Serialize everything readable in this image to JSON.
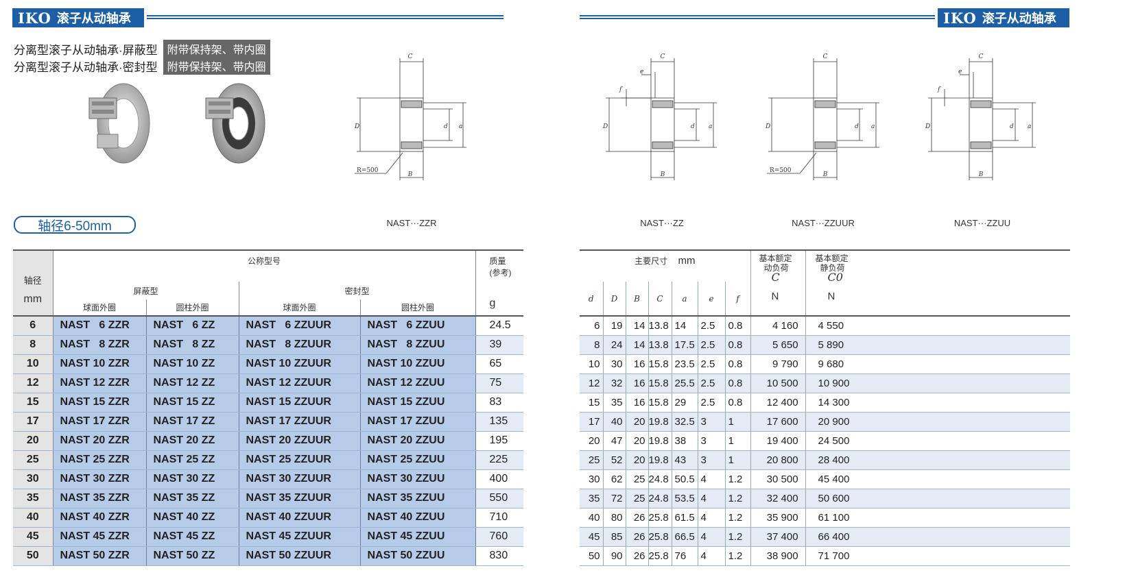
{
  "brand": "IKO",
  "header_title": "滚子从动轴承",
  "subtitles": [
    {
      "text": "分离型滚子从动轴承·屏蔽型",
      "tag": "附带保持架、带内圈"
    },
    {
      "text": "分离型滚子从动轴承·密封型",
      "tag": "附带保持架、带内圈"
    }
  ],
  "shaft_range": "轴径6-50mm",
  "diagram_labels": {
    "C": "C",
    "D": "D",
    "d": "d",
    "a": "a",
    "B": "B",
    "e": "e",
    "f": "f",
    "R": "R=500"
  },
  "captions": [
    "NAST···ZZR",
    "NAST···ZZ",
    "NAST···ZZUUR",
    "NAST···ZZUU"
  ],
  "left_table": {
    "h_shaft": "轴径",
    "h_shaft_unit": "mm",
    "h_nominal": "公称型号",
    "h_shield": "屏蔽型",
    "h_seal": "密封型",
    "h_sphere1": "球面外圈",
    "h_cyl1": "圆柱外圈",
    "h_sphere2": "球面外圈",
    "h_cyl2": "圆柱外圈",
    "h_mass": "质量",
    "h_mass_ref": "(参考)",
    "h_mass_unit": "g",
    "rows": [
      [
        "6",
        "NAST   6 ZZR",
        "NAST   6 ZZ",
        "NAST   6 ZZUUR",
        "NAST   6 ZZUU",
        "24.5"
      ],
      [
        "8",
        "NAST   8 ZZR",
        "NAST   8 ZZ",
        "NAST   8 ZZUUR",
        "NAST   8 ZZUU",
        "39"
      ],
      [
        "10",
        "NAST 10 ZZR",
        "NAST 10 ZZ",
        "NAST 10 ZZUUR",
        "NAST 10 ZZUU",
        "65"
      ],
      [
        "12",
        "NAST 12 ZZR",
        "NAST 12 ZZ",
        "NAST 12 ZZUUR",
        "NAST 12 ZZUU",
        "75"
      ],
      [
        "15",
        "NAST 15 ZZR",
        "NAST 15 ZZ",
        "NAST 15 ZZUUR",
        "NAST 15 ZZUU",
        "83"
      ],
      [
        "17",
        "NAST 17 ZZR",
        "NAST 17 ZZ",
        "NAST 17 ZZUUR",
        "NAST 17 ZZUU",
        "135"
      ],
      [
        "20",
        "NAST 20 ZZR",
        "NAST 20 ZZ",
        "NAST 20 ZZUUR",
        "NAST 20 ZZUU",
        "195"
      ],
      [
        "25",
        "NAST 25 ZZR",
        "NAST 25 ZZ",
        "NAST 25 ZZUUR",
        "NAST 25 ZZUU",
        "225"
      ],
      [
        "30",
        "NAST 30 ZZR",
        "NAST 30 ZZ",
        "NAST 30 ZZUUR",
        "NAST 30 ZZUU",
        "400"
      ],
      [
        "35",
        "NAST 35 ZZR",
        "NAST 35 ZZ",
        "NAST 35 ZZUUR",
        "NAST 35 ZZUU",
        "550"
      ],
      [
        "40",
        "NAST 40 ZZR",
        "NAST 40 ZZ",
        "NAST 40 ZZUUR",
        "NAST 40 ZZUU",
        "710"
      ],
      [
        "45",
        "NAST 45 ZZR",
        "NAST 45 ZZ",
        "NAST 45 ZZUUR",
        "NAST 45 ZZUU",
        "760"
      ],
      [
        "50",
        "NAST 50 ZZR",
        "NAST 50 ZZ",
        "NAST 50 ZZUUR",
        "NAST 50 ZZUU",
        "830"
      ]
    ]
  },
  "right_table": {
    "h_main": "主要尺寸",
    "h_main_unit": "mm",
    "h_dyn": [
      "基本额定",
      "动负荷"
    ],
    "h_dyn_sym": "C",
    "h_static": [
      "基本额定",
      "静负荷"
    ],
    "h_static_sym": "C0",
    "h_unit_n": "N",
    "cols": [
      "d",
      "D",
      "B",
      "C",
      "a",
      "e",
      "f"
    ],
    "rows": [
      [
        "6",
        "19",
        "14",
        "13.8",
        "14",
        "2.5",
        "0.8",
        "4 160",
        "4 550"
      ],
      [
        "8",
        "24",
        "14",
        "13.8",
        "17.5",
        "2.5",
        "0.8",
        "5 650",
        "5 890"
      ],
      [
        "10",
        "30",
        "16",
        "15.8",
        "23.5",
        "2.5",
        "0.8",
        "9 790",
        "9 680"
      ],
      [
        "12",
        "32",
        "16",
        "15.8",
        "25.5",
        "2.5",
        "0.8",
        "10 500",
        "10 900"
      ],
      [
        "15",
        "35",
        "16",
        "15.8",
        "29",
        "2.5",
        "0.8",
        "12 400",
        "14 300"
      ],
      [
        "17",
        "40",
        "20",
        "19.8",
        "32.5",
        "3",
        "1",
        "17 600",
        "20 900"
      ],
      [
        "20",
        "47",
        "20",
        "19.8",
        "38",
        "3",
        "1",
        "19 400",
        "24 500"
      ],
      [
        "25",
        "52",
        "20",
        "19.8",
        "43",
        "3",
        "1",
        "20 800",
        "28 400"
      ],
      [
        "30",
        "62",
        "25",
        "24.8",
        "50.5",
        "4",
        "1.2",
        "30 500",
        "45 400"
      ],
      [
        "35",
        "72",
        "25",
        "24.8",
        "53.5",
        "4",
        "1.2",
        "32 400",
        "50 600"
      ],
      [
        "40",
        "80",
        "26",
        "25.8",
        "61.5",
        "4",
        "1.2",
        "35 900",
        "61 100"
      ],
      [
        "45",
        "85",
        "26",
        "25.8",
        "66.5",
        "4",
        "1.2",
        "37 400",
        "66 400"
      ],
      [
        "50",
        "90",
        "26",
        "25.8",
        "76",
        "4",
        "1.2",
        "38 900",
        "71 700"
      ]
    ]
  }
}
